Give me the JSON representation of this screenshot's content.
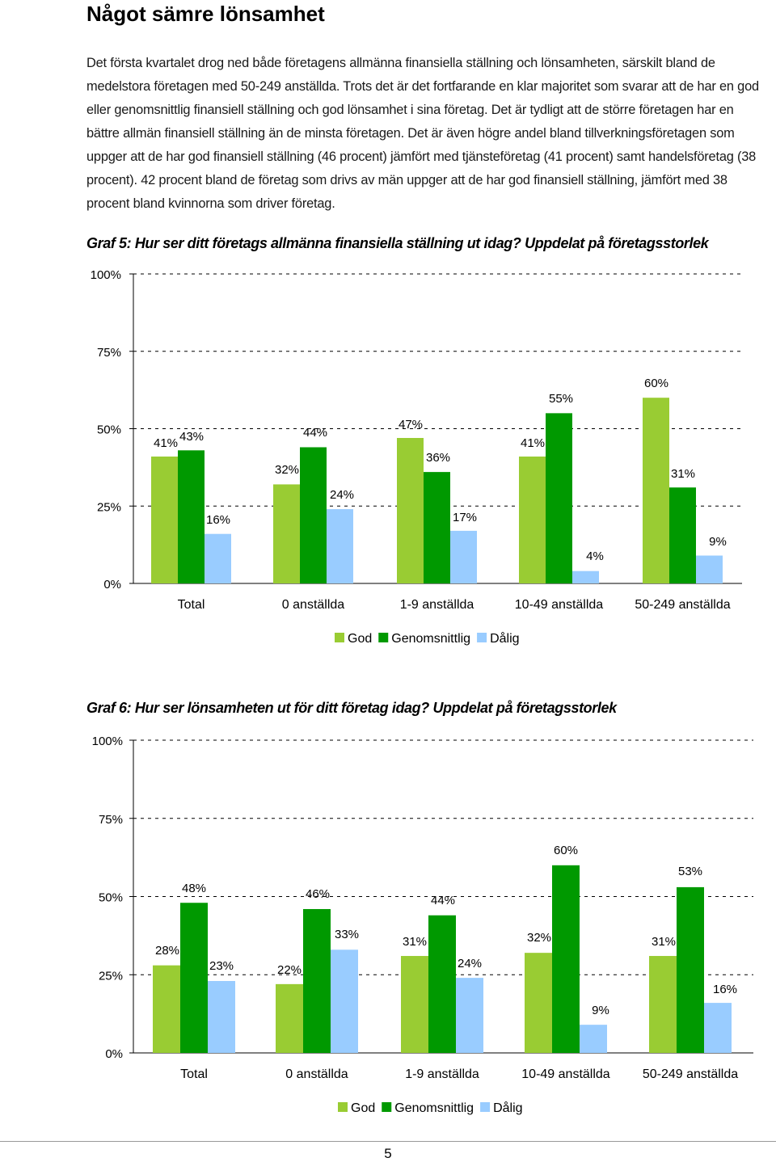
{
  "heading": "Något sämre lönsamhet",
  "body_text": "Det första kvartalet drog ned både företagens allmänna finansiella ställning och lönsamheten, särskilt bland de medelstora företagen med 50-249 anställda. Trots det är det fortfarande en klar majoritet som svarar att de har en god eller genomsnittlig finansiell ställning och god lönsamhet i sina företag. Det är tydligt att de större företagen har en bättre allmän finansiell ställning än de minsta företagen. Det är även högre andel bland tillverkningsföretagen som uppger att de har god finansiell ställning (46 procent) jämfört med tjänsteföretag (41 procent) samt handelsföretag (38 procent). 42 procent bland de företag som drivs av män uppger att de har god finansiell ställning, jämfört med 38 procent bland kvinnorna som driver företag.",
  "colors": {
    "god": "#99CC33",
    "genomsnittlig": "#009900",
    "dalig": "#99CCFF"
  },
  "chart_data": [
    {
      "type": "bar",
      "title": "Graf 5: Hur ser ditt företags allmänna finansiella ställning ut idag? Uppdelat på företagsstorlek",
      "categories": [
        "Total",
        "0 anställda",
        "1-9 anställda",
        "10-49 anställda",
        "50-249 anställda"
      ],
      "series": [
        {
          "name": "God",
          "values": [
            41,
            32,
            47,
            41,
            60
          ],
          "labels": [
            "41%",
            "32%",
            "47%",
            "41%",
            "60%"
          ]
        },
        {
          "name": "Genomsnittlig",
          "values": [
            43,
            44,
            36,
            55,
            31
          ],
          "labels": [
            "43%",
            "44%",
            "36%",
            "55%",
            "31%"
          ]
        },
        {
          "name": "Dålig",
          "values": [
            16,
            24,
            17,
            4,
            9
          ],
          "labels": [
            "16%",
            "24%",
            "17%",
            "4%",
            "9%"
          ]
        }
      ],
      "yticks": [
        "0%",
        "25%",
        "50%",
        "75%",
        "100%"
      ],
      "ylim": [
        0,
        100
      ],
      "grid": "dashed",
      "legend": "bottom-center"
    },
    {
      "type": "bar",
      "title": "Graf 6: Hur ser lönsamheten ut för ditt företag idag? Uppdelat på företagsstorlek",
      "categories": [
        "Total",
        "0 anställda",
        "1-9 anställda",
        "10-49 anställda",
        "50-249 anställda"
      ],
      "series": [
        {
          "name": "God",
          "values": [
            28,
            22,
            31,
            32,
            31
          ],
          "labels": [
            "28%",
            "22%",
            "31%",
            "32%",
            "31%"
          ]
        },
        {
          "name": "Genomsnittlig",
          "values": [
            48,
            46,
            44,
            60,
            53
          ],
          "labels": [
            "48%",
            "46%",
            "44%",
            "60%",
            "53%"
          ]
        },
        {
          "name": "Dålig",
          "values": [
            23,
            33,
            24,
            9,
            16
          ],
          "labels": [
            "23%",
            "33%",
            "24%",
            "9%",
            "16%"
          ]
        }
      ],
      "yticks": [
        "0%",
        "25%",
        "50%",
        "75%",
        "100%"
      ],
      "ylim": [
        0,
        100
      ],
      "grid": "dashed",
      "legend": "bottom-center"
    }
  ],
  "page_number": "5"
}
